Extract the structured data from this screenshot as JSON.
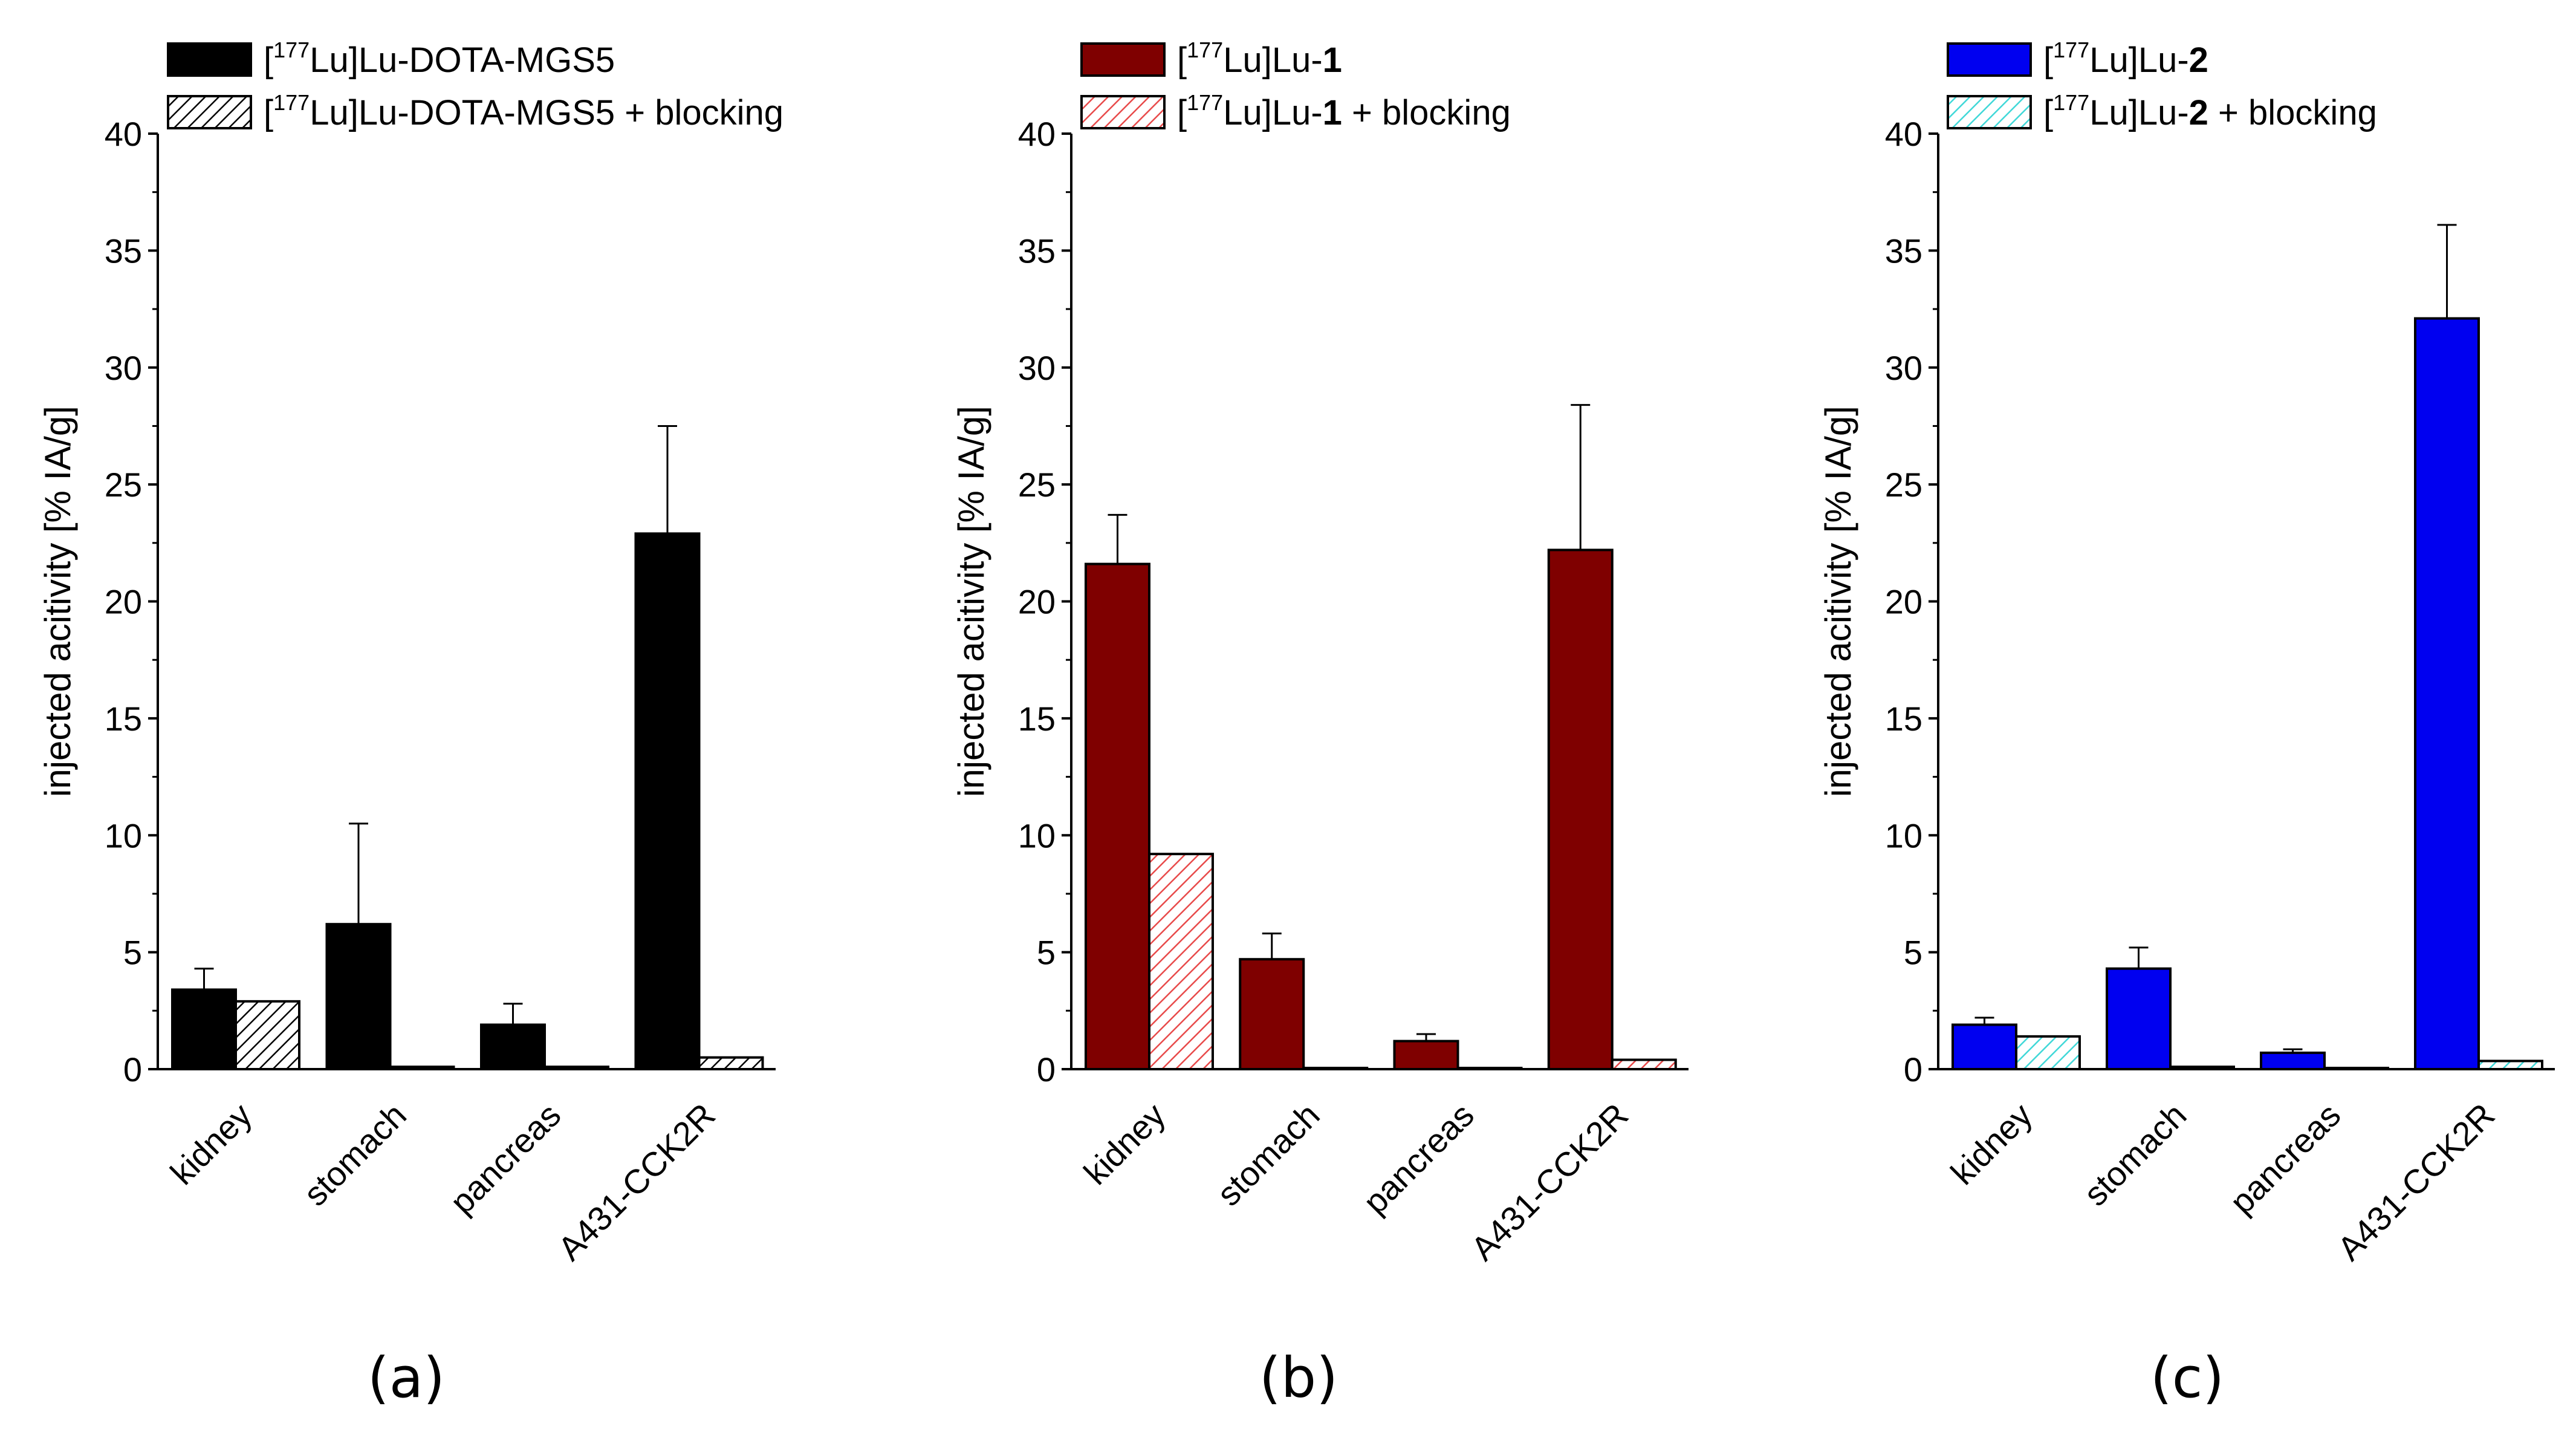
{
  "chart_data": [
    {
      "type": "bar",
      "panel_label": "(a)",
      "ylabel": "injected acitivity [% IA/g]",
      "ylim": [
        0,
        40
      ],
      "yticks": [
        0,
        5,
        10,
        15,
        20,
        25,
        30,
        35,
        40
      ],
      "categories": [
        "kidney",
        "stomach",
        "pancreas",
        "A431-CCK2R"
      ],
      "series": [
        {
          "legend_prefix": "[",
          "legend_sup": "177",
          "legend_name": "Lu]Lu-DOTA-MGS5",
          "legend_bold": "",
          "legend_suffix": "",
          "name": "[177Lu]Lu-DOTA-MGS5",
          "color": "#000000",
          "hatched": false,
          "values": [
            3.4,
            6.2,
            1.9,
            22.9
          ],
          "errors": [
            0.9,
            4.3,
            0.9,
            4.6
          ]
        },
        {
          "legend_prefix": "[",
          "legend_sup": "177",
          "legend_name": "Lu]Lu-DOTA-MGS5 + blocking",
          "legend_bold": "",
          "legend_suffix": "",
          "name": "[177Lu]Lu-DOTA-MGS5 + blocking",
          "color": "#000000",
          "hatched": true,
          "values": [
            2.9,
            0.1,
            0.1,
            0.5
          ],
          "errors": [
            0,
            0,
            0,
            0
          ]
        }
      ]
    },
    {
      "type": "bar",
      "panel_label": "(b)",
      "ylabel": "injected acitivity [% IA/g]",
      "ylim": [
        0,
        40
      ],
      "yticks": [
        0,
        5,
        10,
        15,
        20,
        25,
        30,
        35,
        40
      ],
      "categories": [
        "kidney",
        "stomach",
        "pancreas",
        "A431-CCK2R"
      ],
      "series": [
        {
          "legend_prefix": "[",
          "legend_sup": "177",
          "legend_name": "Lu]Lu-",
          "legend_bold": "1",
          "legend_suffix": "",
          "name": "[177Lu]Lu-1",
          "color": "#7f0000",
          "hatched": false,
          "values": [
            21.6,
            4.7,
            1.2,
            22.2
          ],
          "errors": [
            2.1,
            1.1,
            0.3,
            6.2
          ]
        },
        {
          "legend_prefix": "[",
          "legend_sup": "177",
          "legend_name": "Lu]Lu-",
          "legend_bold": "1",
          "legend_suffix": " + blocking",
          "name": "[177Lu]Lu-1 + blocking",
          "color": "#e84a4a",
          "hatched": true,
          "values": [
            9.2,
            0.05,
            0.05,
            0.4
          ],
          "errors": [
            0,
            0,
            0,
            0
          ]
        }
      ]
    },
    {
      "type": "bar",
      "panel_label": "(c)",
      "ylabel": "injected acitivity [% IA/g]",
      "ylim": [
        0,
        40
      ],
      "yticks": [
        0,
        5,
        10,
        15,
        20,
        25,
        30,
        35,
        40
      ],
      "categories": [
        "kidney",
        "stomach",
        "pancreas",
        "A431-CCK2R"
      ],
      "series": [
        {
          "legend_prefix": "[",
          "legend_sup": "177",
          "legend_name": "Lu]Lu-",
          "legend_bold": "2",
          "legend_suffix": "",
          "name": "[177Lu]Lu-2",
          "color": "#0000f0",
          "hatched": false,
          "values": [
            1.9,
            4.3,
            0.7,
            32.1
          ],
          "errors": [
            0.3,
            0.9,
            0.15,
            4.0
          ]
        },
        {
          "legend_prefix": "[",
          "legend_sup": "177",
          "legend_name": "Lu]Lu-",
          "legend_bold": "2",
          "legend_suffix": " + blocking",
          "name": "[177Lu]Lu-2 + blocking",
          "color": "#40d8d8",
          "hatched": true,
          "values": [
            1.4,
            0.1,
            0.05,
            0.35
          ],
          "errors": [
            0,
            0,
            0,
            0
          ]
        }
      ]
    }
  ]
}
